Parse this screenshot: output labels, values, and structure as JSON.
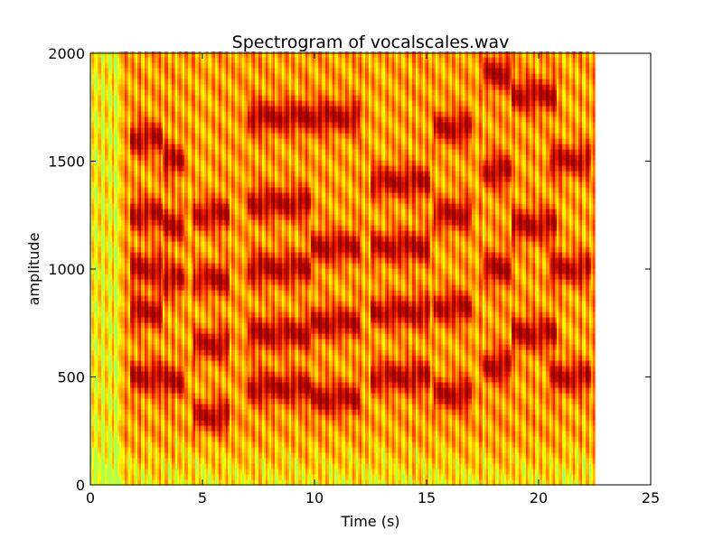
{
  "chart_data": {
    "type": "heatmap",
    "title": "Spectrogram of vocalscales.wav",
    "xlabel": "Time (s)",
    "ylabel": "amplitude",
    "xlim": [
      0,
      25
    ],
    "ylim": [
      0,
      2000
    ],
    "data_x_extent": [
      0,
      22.5
    ],
    "grid": false,
    "colormap": "hot (dark red → red → orange → yellow → light green)",
    "x_ticks": [
      0,
      5,
      10,
      15,
      20,
      25
    ],
    "x_tick_labels": [
      "0",
      "5",
      "10",
      "15",
      "20",
      "25"
    ],
    "y_ticks": [
      0,
      500,
      1000,
      1500,
      2000
    ],
    "y_tick_labels": [
      "0",
      "500",
      "1000",
      "1500",
      "2000"
    ],
    "bands": [
      {
        "t": [
          1.8,
          3.2
        ],
        "freqs": [
          500,
          800,
          1000,
          1250,
          1600
        ]
      },
      {
        "t": [
          3.2,
          4.2
        ],
        "freqs": [
          480,
          950,
          1200,
          1500
        ]
      },
      {
        "t": [
          4.6,
          6.2
        ],
        "freqs": [
          320,
          650,
          950,
          1250
        ]
      },
      {
        "t": [
          7.0,
          9.8
        ],
        "freqs": [
          450,
          700,
          1000,
          1300,
          1700
        ]
      },
      {
        "t": [
          9.8,
          12.0
        ],
        "freqs": [
          400,
          750,
          1100,
          1700
        ]
      },
      {
        "t": [
          12.5,
          15.2
        ],
        "freqs": [
          500,
          800,
          1100,
          1400
        ]
      },
      {
        "t": [
          15.3,
          17.0
        ],
        "freqs": [
          420,
          820,
          1250,
          1650
        ]
      },
      {
        "t": [
          17.5,
          18.8
        ],
        "freqs": [
          550,
          1000,
          1450,
          1900
        ]
      },
      {
        "t": [
          18.8,
          20.8
        ],
        "freqs": [
          700,
          1200,
          1800
        ]
      },
      {
        "t": [
          20.5,
          22.3
        ],
        "freqs": [
          500,
          1000,
          1500
        ]
      }
    ],
    "colors": {
      "dark_red": "#a00000",
      "red": "#ff2a00",
      "orange": "#ff8c00",
      "yellow": "#ffff00",
      "light_green": "#b5ff48",
      "frame": "#000000"
    }
  }
}
